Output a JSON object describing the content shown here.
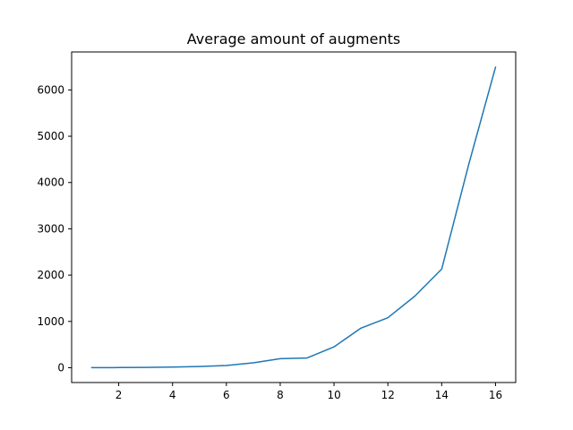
{
  "chart_data": {
    "type": "line",
    "title": "Average amount of augments",
    "xlabel": "",
    "ylabel": "",
    "xlim": [
      0.25,
      16.75
    ],
    "ylim": [
      -320,
      6820
    ],
    "xticks": [
      2,
      4,
      6,
      8,
      10,
      12,
      14,
      16
    ],
    "xtick_labels": [
      "2",
      "4",
      "6",
      "8",
      "10",
      "12",
      "14",
      "16"
    ],
    "yticks": [
      0,
      1000,
      2000,
      3000,
      4000,
      5000,
      6000
    ],
    "ytick_labels": [
      "0",
      "1000",
      "2000",
      "3000",
      "4000",
      "5000",
      "6000"
    ],
    "grid": false,
    "series": [
      {
        "color": "#1f77b4",
        "x": [
          1,
          2,
          3,
          4,
          5,
          6,
          7,
          8,
          9,
          10,
          11,
          12,
          13,
          14,
          15,
          16
        ],
        "values": [
          1,
          3,
          6,
          14,
          27,
          48,
          105,
          195,
          210,
          450,
          855,
          1080,
          1545,
          2130,
          4380,
          6490
        ]
      }
    ]
  }
}
